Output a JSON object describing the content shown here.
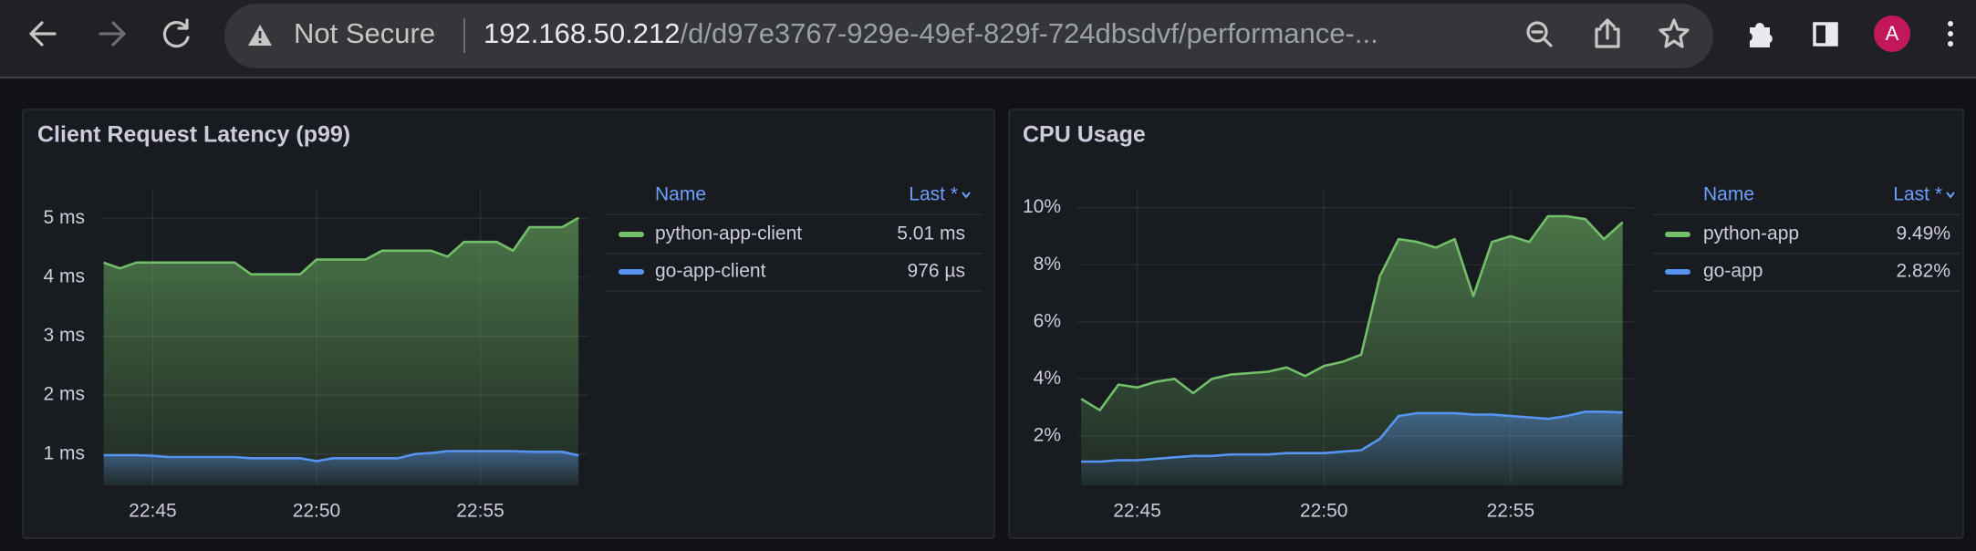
{
  "browser": {
    "security": "Not Secure",
    "url_host": "192.168.50.212",
    "url_path": "/d/d97e3767-929e-49ef-829f-724dbsdvf/performance-...",
    "avatar": "A"
  },
  "panels": [
    {
      "title": "Client Request Latency (p99)",
      "legend_headers": [
        "Name",
        "Last *"
      ],
      "chart_data": {
        "type": "line",
        "x": [
          1363.5,
          1364,
          1364.5,
          1365,
          1365.5,
          1366,
          1366.5,
          1367,
          1367.5,
          1368,
          1368.5,
          1369,
          1369.5,
          1370,
          1370.5,
          1371,
          1371.5,
          1372,
          1372.5,
          1373,
          1373.5,
          1374,
          1374.5,
          1375,
          1375.5,
          1376,
          1376.5,
          1377,
          1377.5,
          1378
        ],
        "xlim": [
          1363.4,
          1378.3
        ],
        "xticks": [
          {
            "value": 1365,
            "label": "22:45"
          },
          {
            "value": 1370,
            "label": "22:50"
          },
          {
            "value": 1375,
            "label": "22:55"
          }
        ],
        "ylim": [
          0.47,
          5.5
        ],
        "yticks": [
          {
            "value": 1,
            "label": "1 ms"
          },
          {
            "value": 2,
            "label": "2 ms"
          },
          {
            "value": 3,
            "label": "3 ms"
          },
          {
            "value": 4,
            "label": "4 ms"
          },
          {
            "value": 5,
            "label": "5 ms"
          }
        ],
        "grid": true,
        "series": [
          {
            "name": "python-app-client",
            "color": "#73bf69",
            "legend_value": "5.01 ms",
            "values": [
              4.25,
              4.15,
              4.25,
              4.25,
              4.25,
              4.25,
              4.25,
              4.25,
              4.25,
              4.05,
              4.05,
              4.05,
              4.05,
              4.3,
              4.3,
              4.3,
              4.3,
              4.45,
              4.45,
              4.45,
              4.45,
              4.35,
              4.6,
              4.6,
              4.6,
              4.45,
              4.85,
              4.85,
              4.85,
              5.01
            ]
          },
          {
            "name": "go-app-client",
            "color": "#5794f2",
            "legend_value": "976 µs",
            "values": [
              0.98,
              0.98,
              0.98,
              0.97,
              0.95,
              0.95,
              0.95,
              0.95,
              0.95,
              0.93,
              0.93,
              0.93,
              0.93,
              0.88,
              0.93,
              0.93,
              0.93,
              0.93,
              0.93,
              1.0,
              1.02,
              1.05,
              1.05,
              1.05,
              1.05,
              1.05,
              1.04,
              1.04,
              1.04,
              0.976
            ]
          }
        ]
      }
    },
    {
      "title": "CPU Usage",
      "legend_headers": [
        "Name",
        "Last *"
      ],
      "chart_data": {
        "type": "line",
        "x": [
          1363.5,
          1364,
          1364.5,
          1365,
          1365.5,
          1366,
          1366.5,
          1367,
          1367.5,
          1368,
          1368.5,
          1369,
          1369.5,
          1370,
          1370.5,
          1371,
          1371.5,
          1372,
          1372.5,
          1373,
          1373.5,
          1374,
          1374.5,
          1375,
          1375.5,
          1376,
          1376.5,
          1377,
          1377.5,
          1378
        ],
        "xlim": [
          1363.4,
          1378.3
        ],
        "xticks": [
          {
            "value": 1365,
            "label": "22:45"
          },
          {
            "value": 1370,
            "label": "22:50"
          },
          {
            "value": 1375,
            "label": "22:55"
          }
        ],
        "ylim": [
          0.27,
          10.66
        ],
        "yticks": [
          {
            "value": 2,
            "label": "2%"
          },
          {
            "value": 4,
            "label": "4%"
          },
          {
            "value": 6,
            "label": "6%"
          },
          {
            "value": 8,
            "label": "8%"
          },
          {
            "value": 10,
            "label": "10%"
          }
        ],
        "grid": true,
        "series": [
          {
            "name": "python-app",
            "color": "#73bf69",
            "legend_value": "9.49%",
            "values": [
              3.3,
              2.9,
              3.8,
              3.7,
              3.9,
              4.0,
              3.5,
              4.0,
              4.15,
              4.2,
              4.25,
              4.4,
              4.1,
              4.45,
              4.6,
              4.85,
              7.6,
              8.9,
              8.8,
              8.6,
              8.9,
              6.9,
              8.8,
              9.0,
              8.8,
              9.7,
              9.7,
              9.6,
              8.9,
              9.49
            ]
          },
          {
            "name": "go-app",
            "color": "#5794f2",
            "legend_value": "2.82%",
            "values": [
              1.1,
              1.1,
              1.15,
              1.15,
              1.2,
              1.25,
              1.3,
              1.3,
              1.35,
              1.35,
              1.35,
              1.4,
              1.4,
              1.4,
              1.45,
              1.5,
              1.9,
              2.7,
              2.8,
              2.8,
              2.8,
              2.75,
              2.75,
              2.7,
              2.65,
              2.6,
              2.7,
              2.85,
              2.85,
              2.82
            ]
          }
        ]
      }
    }
  ]
}
